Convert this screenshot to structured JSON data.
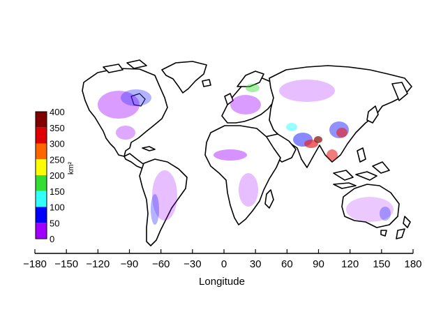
{
  "map": {
    "xlabel": "Longitude",
    "x_ticks": [
      "−180",
      "−150",
      "−120",
      "−90",
      "−60",
      "−30",
      "0",
      "30",
      "60",
      "90",
      "120",
      "150",
      "180"
    ],
    "x_range": [
      -180,
      180
    ]
  },
  "legend": {
    "unit": "km²",
    "labels": [
      "400",
      "350",
      "300",
      "250",
      "200",
      "150",
      "100",
      "50",
      "0"
    ],
    "colors": [
      "#800000",
      "#e00000",
      "#ff6600",
      "#ffff00",
      "#33dd33",
      "#33ffff",
      "#0000ff",
      "#a000ff"
    ]
  }
}
